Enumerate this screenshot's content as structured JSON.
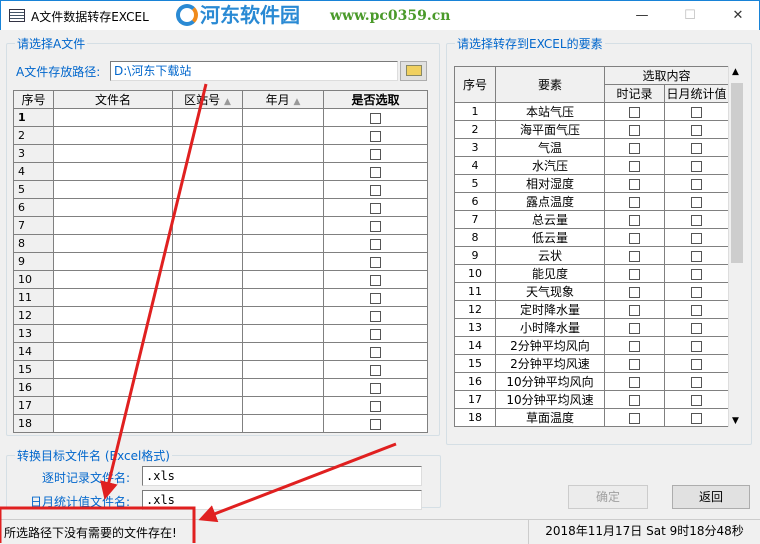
{
  "window": {
    "title": "A文件数据转存EXCEL",
    "minimize": "—",
    "maximize": "☐",
    "close": "✕"
  },
  "watermark": {
    "name": "河东软件园",
    "url": "www.pc0359.cn"
  },
  "left_group": {
    "legend": "请选择A文件",
    "path_label": "A文件存放路径:",
    "path_value": "D:\\河东下载站",
    "columns": [
      "序号",
      "文件名",
      "区站号",
      "年月",
      "是否选取"
    ],
    "rows": [
      "1",
      "2",
      "3",
      "4",
      "5",
      "6",
      "7",
      "8",
      "9",
      "10",
      "11",
      "12",
      "13",
      "14",
      "15",
      "16",
      "17",
      "18"
    ]
  },
  "right_group": {
    "legend": "请选择转存到EXCEL的要素",
    "columns": {
      "index": "序号",
      "element": "要素",
      "selection": "选取内容",
      "hourly": "时记录",
      "daily_monthly": "日月统计值"
    },
    "rows": [
      [
        "1",
        "本站气压"
      ],
      [
        "2",
        "海平面气压"
      ],
      [
        "3",
        "气温"
      ],
      [
        "4",
        "水汽压"
      ],
      [
        "5",
        "相对湿度"
      ],
      [
        "6",
        "露点温度"
      ],
      [
        "7",
        "总云量"
      ],
      [
        "8",
        "低云量"
      ],
      [
        "9",
        "云状"
      ],
      [
        "10",
        "能见度"
      ],
      [
        "11",
        "天气现象"
      ],
      [
        "12",
        "定时降水量"
      ],
      [
        "13",
        "小时降水量"
      ],
      [
        "14",
        "2分钟平均风向"
      ],
      [
        "15",
        "2分钟平均风速"
      ],
      [
        "16",
        "10分钟平均风向"
      ],
      [
        "17",
        "10分钟平均风速"
      ],
      [
        "18",
        "草面温度"
      ]
    ]
  },
  "target_group": {
    "legend": "转换目标文件名 (Excel格式)",
    "hourly_label": "逐时记录文件名:",
    "hourly_value": ".xls",
    "daily_label": "日月统计值文件名:",
    "daily_value": ".xls"
  },
  "buttons": {
    "ok": "确定",
    "back": "返回"
  },
  "status": {
    "message": "所选路径下没有需要的文件存在!",
    "datetime": "2018年11月17日  Sat 9时18分48秒"
  },
  "colors": {
    "annotation": "#e02020",
    "label": "#0066cc"
  }
}
